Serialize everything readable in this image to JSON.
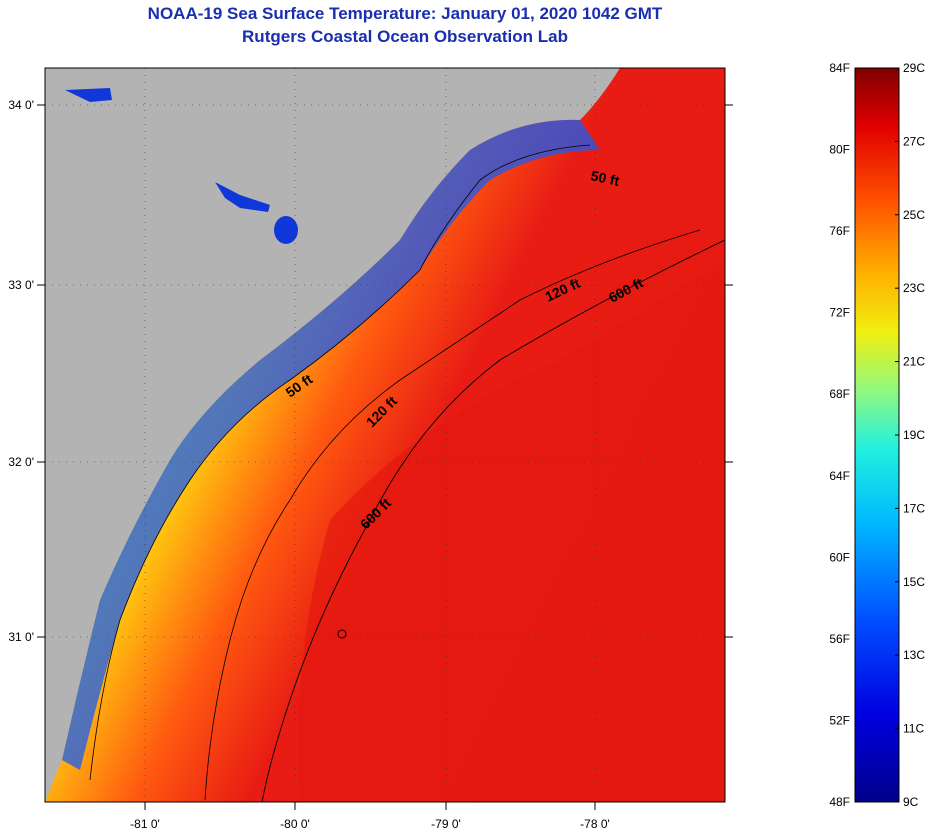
{
  "header": {
    "title": "NOAA-19 Sea Surface Temperature:  January 01, 2020 1042 GMT",
    "subtitle": "Rutgers Coastal Ocean Observation Lab"
  },
  "axes": {
    "longitude_labels": [
      "-81 0'",
      "-80 0'",
      "-79 0'",
      "-78 0'"
    ],
    "latitude_labels": [
      "34 0'",
      "33 0'",
      "32 0'",
      "31 0'"
    ]
  },
  "contours": [
    {
      "label": "50 ft",
      "name": "50ft-north"
    },
    {
      "label": "50 ft",
      "name": "50ft-south"
    },
    {
      "label": "120 ft",
      "name": "120ft-north"
    },
    {
      "label": "120 ft",
      "name": "120ft-south"
    },
    {
      "label": "600 ft",
      "name": "600ft-north"
    },
    {
      "label": "600 ft",
      "name": "600ft-south"
    }
  ],
  "colorbar": {
    "fahrenheit": [
      "84F",
      "80F",
      "76F",
      "72F",
      "68F",
      "64F",
      "60F",
      "56F",
      "52F",
      "48F"
    ],
    "celsius": [
      "29C",
      "27C",
      "25C",
      "23C",
      "21C",
      "19C",
      "17C",
      "15C",
      "13C",
      "11C",
      "9C"
    ]
  },
  "colors": {
    "land": "#b3b3b3",
    "title": "#1a2fb0",
    "warm": "#e01a10",
    "cold": "#1438e0"
  }
}
